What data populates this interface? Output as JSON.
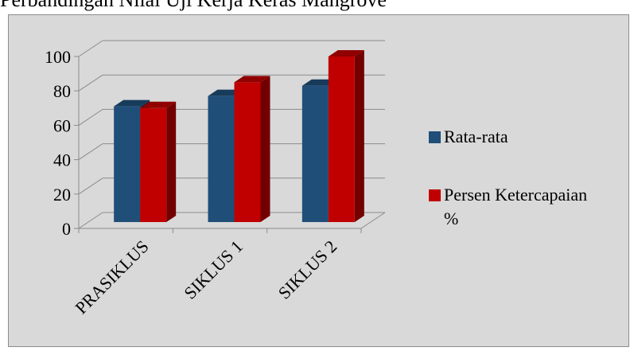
{
  "caption": "Perbandingan Nilai Uji Kerja Keras Mangrove",
  "chart_data": {
    "type": "bar",
    "categories": [
      "PRASIKLUS",
      "SIKLUS 1",
      "SIKLUS 2"
    ],
    "series": [
      {
        "name": "Rata-rata",
        "values": [
          71,
          77,
          83
        ],
        "color": "#1f4e79"
      },
      {
        "name": "Persen Ketercapaian %",
        "values": [
          70,
          85,
          100
        ],
        "color": "#c00000"
      }
    ],
    "title": "",
    "xlabel": "",
    "ylabel": "",
    "ylim": [
      0,
      100
    ],
    "yticks": [
      0,
      20,
      40,
      60,
      80,
      100
    ],
    "grid": true,
    "style": "3d-clustered-column",
    "legend_position": "right"
  }
}
